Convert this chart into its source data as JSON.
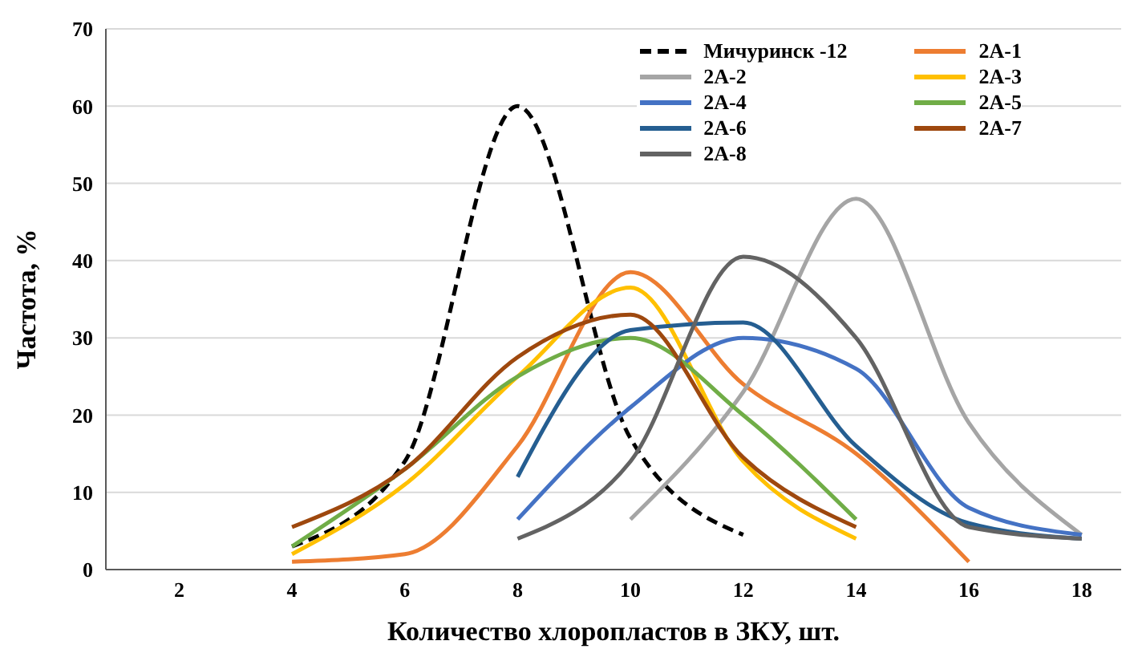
{
  "chart_data": {
    "type": "line",
    "xlabel": "Количество хлоропластов  в ЗКУ, шт.",
    "ylabel": "Частота, %",
    "xlim": [
      0.7,
      18.7
    ],
    "xticks": [
      2,
      4,
      6,
      8,
      10,
      12,
      14,
      16,
      18
    ],
    "ylim": [
      0,
      70
    ],
    "yticks": [
      0,
      10,
      20,
      30,
      40,
      50,
      60,
      70
    ],
    "grid": "y",
    "legend": "top right",
    "marker": "none",
    "series": [
      {
        "name": "Мичуринск -12",
        "color": "#000000",
        "line_style": "dashed",
        "x": [
          4,
          6,
          8,
          10,
          12
        ],
        "values": [
          3,
          14,
          60,
          17,
          4.5
        ]
      },
      {
        "name": "2А-1",
        "color": "#ed7d31",
        "x": [
          4,
          6,
          8,
          10,
          12,
          14,
          16
        ],
        "values": [
          1,
          2,
          16,
          38.5,
          24,
          15,
          1
        ]
      },
      {
        "name": "2А-2",
        "color": "#a5a5a5",
        "x": [
          10,
          12,
          14,
          16,
          18
        ],
        "values": [
          6.5,
          23,
          48,
          19,
          4.5
        ]
      },
      {
        "name": "2А-3",
        "color": "#ffc000",
        "x": [
          4,
          6,
          8,
          10,
          12,
          14
        ],
        "values": [
          2,
          11,
          25,
          36.5,
          14,
          4
        ]
      },
      {
        "name": "2А-4",
        "color": "#4472c4",
        "x": [
          8,
          10,
          12,
          14,
          16,
          18
        ],
        "values": [
          6.5,
          21,
          30,
          26,
          8,
          4.5
        ]
      },
      {
        "name": "2А-5",
        "color": "#70ad47",
        "x": [
          4,
          6,
          8,
          10,
          12,
          14
        ],
        "values": [
          3,
          13,
          25,
          30,
          20,
          6.5
        ]
      },
      {
        "name": "2А-6",
        "color": "#255e91",
        "x": [
          8,
          10,
          12,
          14,
          16,
          18
        ],
        "values": [
          12,
          31,
          32,
          16,
          6,
          4
        ]
      },
      {
        "name": "2А-7",
        "color": "#9e480e",
        "x": [
          4,
          6,
          8,
          10,
          12,
          14
        ],
        "values": [
          5.5,
          13,
          27.5,
          33,
          14.5,
          5.5
        ]
      },
      {
        "name": "2А-8",
        "color": "#636363",
        "x": [
          8,
          10,
          12,
          14,
          16,
          18
        ],
        "values": [
          4,
          14,
          40.5,
          30,
          5.5,
          4
        ]
      }
    ]
  }
}
